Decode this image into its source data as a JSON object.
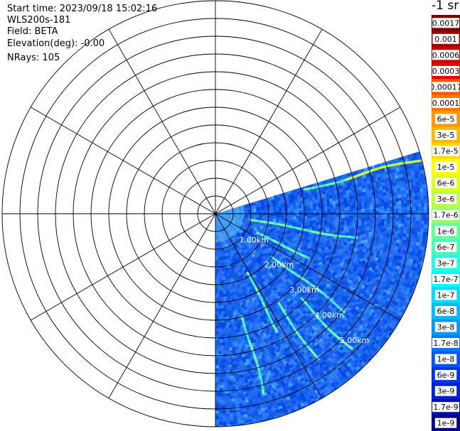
{
  "info": {
    "start_time": "Start time: 2023/09/18 15:02:16",
    "instrument": "WLS200s-181",
    "field": "Field: BETA",
    "elevation": "Elevation(deg): -0.00",
    "nrays": "NRays: 105"
  },
  "chart_data": {
    "type": "heatmap",
    "projection": "polar PPI",
    "field": "BETA",
    "units": "-1 sr",
    "range_rings_km": [
      0.5,
      1.0,
      1.5,
      2.0,
      2.5,
      3.0,
      3.5,
      4.0,
      4.5,
      5.0,
      5.5,
      6.0
    ],
    "range_labels": [
      "1.00km",
      "2.00km",
      "3.00km",
      "4.00km",
      "5.00km"
    ],
    "label_km": [
      1,
      2,
      3,
      4,
      5
    ],
    "radial_step_deg": 30,
    "sector_deg": [
      -17,
      90
    ],
    "sector_note": "data shown from ~17 deg above east, clockwise through east, to south",
    "max_range_km": 6.0,
    "plumes": [
      {
        "az_deg": -15,
        "r_from_km": 2.6,
        "r_to_km": 6.0
      },
      {
        "az_deg": 10,
        "r_from_km": 1.0,
        "r_to_km": 4.1
      },
      {
        "az_deg": 25,
        "r_from_km": 1.3,
        "r_to_km": 2.9
      },
      {
        "az_deg": 37,
        "r_from_km": 2.0,
        "r_to_km": 4.6
      },
      {
        "az_deg": 45,
        "r_from_km": 3.4,
        "r_to_km": 5.4
      },
      {
        "az_deg": 55,
        "r_from_km": 3.1,
        "r_to_km": 5.1
      },
      {
        "az_deg": 62,
        "r_from_km": 1.9,
        "r_to_km": 3.8
      },
      {
        "az_deg": 75,
        "r_from_km": 3.0,
        "r_to_km": 5.3
      }
    ],
    "colorbar": {
      "labels": [
        "0.0017",
        "0.001",
        "0.0006",
        "0.0003",
        "0.00017",
        "0.0001",
        "6e-5",
        "3e-5",
        "1.7e-5",
        "1e-5",
        "6e-6",
        "3e-6",
        "1.7e-6",
        "1e-6",
        "6e-7",
        "3e-7",
        "1.7e-7",
        "1e-7",
        "6e-8",
        "3e-8",
        "1.7e-8",
        "1e-8",
        "6e-9",
        "3e-9",
        "1.7e-9",
        "1e-9"
      ],
      "colors": [
        "#7a0000",
        "#a30000",
        "#cc0000",
        "#ee0000",
        "#ff5500",
        "#ff7700",
        "#ff9900",
        "#ffbb00",
        "#ffdd00",
        "#ffff00",
        "#ddff22",
        "#bbff44",
        "#99ff66",
        "#66ff99",
        "#44ffbb",
        "#22ffdd",
        "#00ffff",
        "#00ddff",
        "#00bbff",
        "#0099ff",
        "#0077ff",
        "#0055ff",
        "#0033ee",
        "#0022cc",
        "#0011aa",
        "#000088"
      ]
    }
  }
}
